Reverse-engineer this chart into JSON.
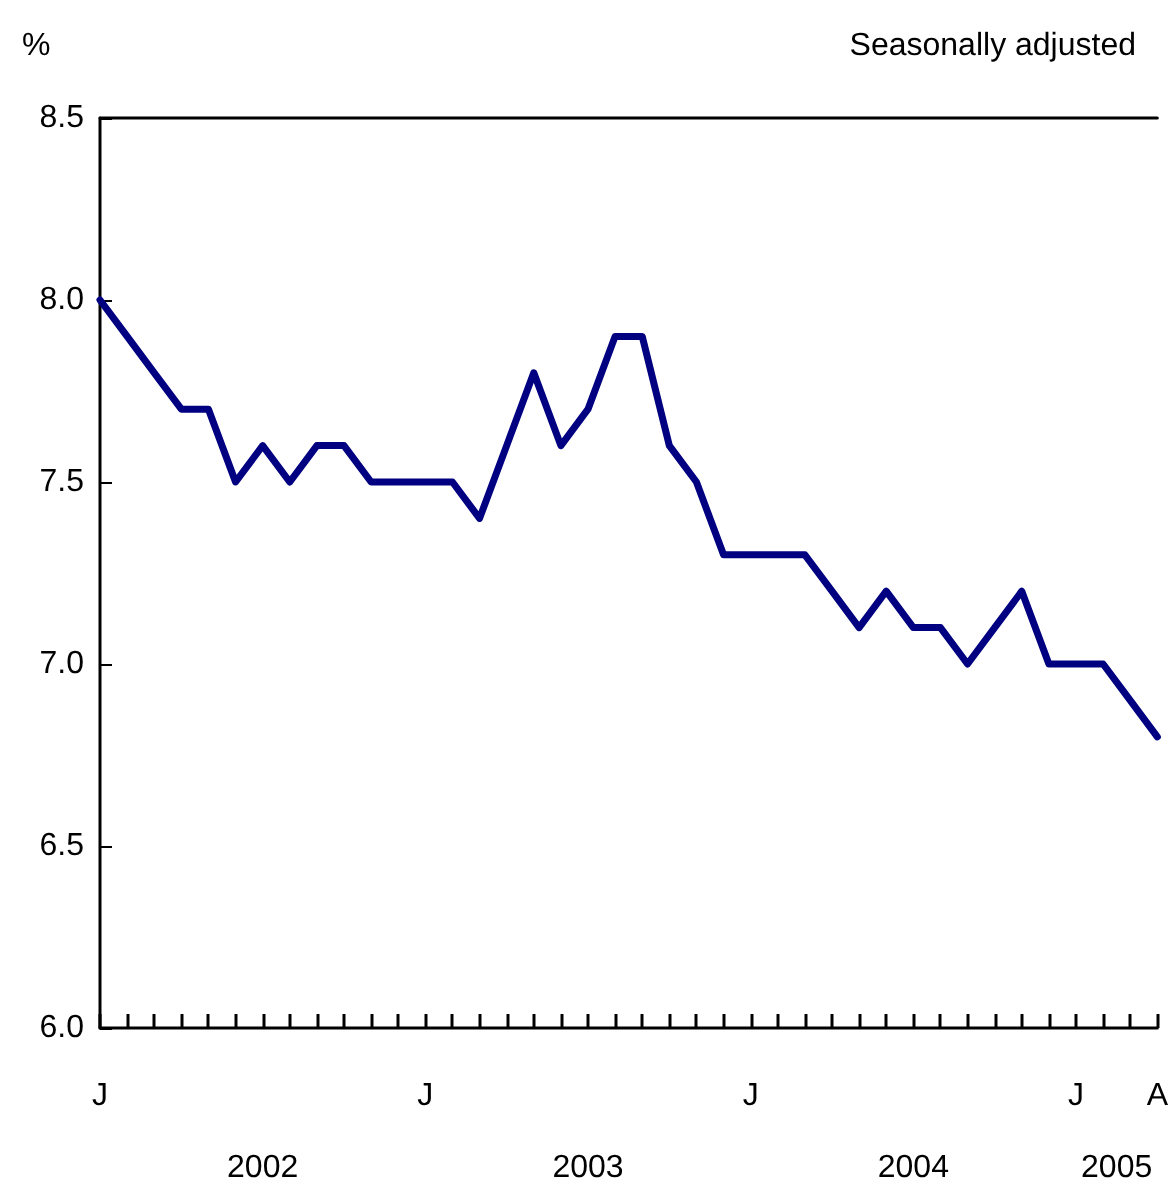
{
  "chart_data": {
    "type": "line",
    "subtitle": "Seasonally adjusted",
    "ylabel": "%",
    "categories": [
      "J",
      null,
      null,
      null,
      null,
      null,
      null,
      null,
      null,
      null,
      null,
      null,
      "J",
      null,
      null,
      null,
      null,
      null,
      null,
      null,
      null,
      null,
      null,
      null,
      "J",
      null,
      null,
      null,
      null,
      null,
      null,
      null,
      null,
      null,
      null,
      null,
      "J",
      null,
      null,
      "A"
    ],
    "series": [
      {
        "color": "#000080",
        "values": [
          8.0,
          7.9,
          7.8,
          7.7,
          7.7,
          7.5,
          7.6,
          7.5,
          7.6,
          7.6,
          7.5,
          7.5,
          7.5,
          7.5,
          7.4,
          7.6,
          7.8,
          7.6,
          7.7,
          7.9,
          7.9,
          7.6,
          7.5,
          7.3,
          7.3,
          7.3,
          7.3,
          7.2,
          7.1,
          7.2,
          7.1,
          7.1,
          7.0,
          7.1,
          7.2,
          7.0,
          7.0,
          7.0,
          6.9,
          6.8
        ]
      }
    ],
    "ylim": [
      6.0,
      8.5
    ],
    "yticks": [
      {
        "value": 6.0,
        "label": "6.0"
      },
      {
        "value": 6.5,
        "label": "6.5"
      },
      {
        "value": 7.0,
        "label": "7.0"
      },
      {
        "value": 7.5,
        "label": "7.5"
      },
      {
        "value": 8.0,
        "label": "8.0"
      },
      {
        "value": 8.5,
        "label": "8.5"
      }
    ],
    "annotations": [
      "2002",
      "2003",
      "2004",
      "2005"
    ],
    "grid": false,
    "marker": "none",
    "line_style": "solid"
  }
}
